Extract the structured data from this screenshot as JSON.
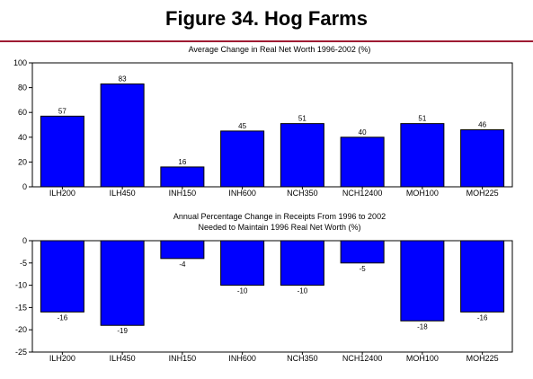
{
  "figure_title": "Figure 34. Hog Farms",
  "colors": {
    "bar": "#0000ff",
    "rule": "#9e1b32",
    "frame": "#000000"
  },
  "chart_data": [
    {
      "type": "bar",
      "title": "Average Change in Real Net Worth 1996-2002 (%)",
      "categories": [
        "ILH200",
        "ILH450",
        "INH150",
        "INH600",
        "NCH350",
        "NCH12400",
        "MOH100",
        "MOH225"
      ],
      "values": [
        57,
        83,
        16,
        45,
        51,
        40,
        51,
        46
      ],
      "ylim": [
        0,
        100
      ],
      "yticks": [
        0,
        20,
        40,
        60,
        80,
        100
      ],
      "grid": false,
      "xlabel": "",
      "ylabel": ""
    },
    {
      "type": "bar",
      "title": "Annual Percentage Change in Receipts From 1996 to 2002",
      "subtitle": "Needed to Maintain 1996 Real Net Worth (%)",
      "categories": [
        "ILH200",
        "ILH450",
        "INH150",
        "INH600",
        "NCH350",
        "NCH12400",
        "MOH100",
        "MOH225"
      ],
      "values": [
        -16,
        -19,
        -4,
        -10,
        -10,
        -5,
        -18,
        -16
      ],
      "ylim": [
        -25,
        0
      ],
      "yticks": [
        0,
        -5,
        -10,
        -15,
        -20,
        -25
      ],
      "grid": false,
      "xlabel": "",
      "ylabel": ""
    }
  ]
}
